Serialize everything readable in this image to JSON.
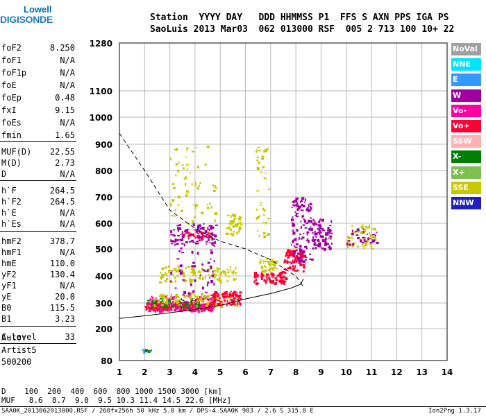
{
  "logo": {
    "line1": "Lowell",
    "line2": "DIGISONDE"
  },
  "header": {
    "columns_line": "Station  YYYY DAY   DDD HHMMSS P1  FFS S AXN PPS IGA PS",
    "values_line": "SaoLuis 2013 Mar03  062 013000 RSF  005 2 713 100 10+ 22"
  },
  "params": [
    {
      "name": "foF2",
      "value": "8.250"
    },
    {
      "name": "foF1",
      "value": "N/A"
    },
    {
      "name": "foF1p",
      "value": "N/A"
    },
    {
      "name": "foE",
      "value": "N/A"
    },
    {
      "name": "foEp",
      "value": "0.48"
    },
    {
      "name": "fxI",
      "value": "9.15"
    },
    {
      "name": "foEs",
      "value": "N/A"
    },
    {
      "name": "fmin",
      "value": "1.65"
    },
    {
      "name": "MUF(D)",
      "value": "22.55"
    },
    {
      "name": "M(D)",
      "value": "2.73"
    },
    {
      "name": "D",
      "value": "N/A"
    },
    {
      "name": "h`F",
      "value": "264.5"
    },
    {
      "name": "h`F2",
      "value": "264.5"
    },
    {
      "name": "h`E",
      "value": "N/A"
    },
    {
      "name": "h`Es",
      "value": "N/A"
    },
    {
      "name": "hmF2",
      "value": "378.7"
    },
    {
      "name": "hmF1",
      "value": "N/A"
    },
    {
      "name": "hmE",
      "value": "110.0"
    },
    {
      "name": "yF2",
      "value": "130.4"
    },
    {
      "name": "yF1",
      "value": "N/A"
    },
    {
      "name": "yE",
      "value": "20.0"
    },
    {
      "name": "B0",
      "value": "115.5"
    },
    {
      "name": "B1",
      "value": "3.23"
    },
    {
      "name": "C-level",
      "value": "33"
    }
  ],
  "autoscale": {
    "line1": "Auto:",
    "line2": "Artist5",
    "line3": "500200"
  },
  "legend": [
    {
      "label": "NoVal",
      "color": "#a0a0a0"
    },
    {
      "label": "NNE",
      "color": "#00e5ff"
    },
    {
      "label": "E",
      "color": "#3399ff"
    },
    {
      "label": "W",
      "color": "#a000a0"
    },
    {
      "label": "Vo-",
      "color": "#ff00a0"
    },
    {
      "label": "Vo+",
      "color": "#ff0033"
    },
    {
      "label": "SSW",
      "color": "#ffb0b0"
    },
    {
      "label": "X-",
      "color": "#008000"
    },
    {
      "label": "X+",
      "color": "#7fbf4f"
    },
    {
      "label": "SSE",
      "color": "#c8c800"
    },
    {
      "label": "NNW",
      "color": "#2020c0"
    }
  ],
  "footer": {
    "d_line": "D    100  200  400  600  800 1000 1500 3000 [km]",
    "muf_line": "MUF   8.6  8.7  9.0  9.5 10.3 11.4 14.5 22.6 [MHz]",
    "file_line": "SAA0K_2013062013000.RSF / 260fx256h 50 kHz 5.0 km / DPS-4 SAA0K 903 / 2.6 S 315.8 E",
    "version": "Ion2Png 1.3.17"
  },
  "chart_data": {
    "type": "scatter",
    "x_ticks": [
      1,
      2,
      3,
      4,
      5,
      6,
      7,
      8,
      9,
      10,
      11,
      12,
      13,
      14
    ],
    "y_ticks": [
      80,
      200,
      300,
      400,
      500,
      600,
      700,
      800,
      900,
      1000,
      1100,
      1280
    ],
    "xlim": [
      1,
      14
    ],
    "ylim": [
      80,
      1280
    ],
    "grid": true,
    "legend_placement": "right",
    "clusters": [
      {
        "color": "#ff0033",
        "x": [
          2.0,
          4.6
        ],
        "y": [
          275,
          305
        ],
        "n": 220
      },
      {
        "color": "#ff00a0",
        "x": [
          2.1,
          4.8
        ],
        "y": [
          270,
          330
        ],
        "n": 150
      },
      {
        "color": "#008000",
        "x": [
          2.0,
          4.2
        ],
        "y": [
          285,
          320
        ],
        "n": 60
      },
      {
        "color": "#c8c800",
        "x": [
          2.3,
          5.7
        ],
        "y": [
          290,
          340
        ],
        "n": 90
      },
      {
        "color": "#ff0033",
        "x": [
          4.6,
          5.8
        ],
        "y": [
          295,
          345
        ],
        "n": 80
      },
      {
        "color": "#ff0033",
        "x": [
          6.3,
          7.6
        ],
        "y": [
          370,
          420
        ],
        "n": 80
      },
      {
        "color": "#ff0033",
        "x": [
          7.5,
          8.3
        ],
        "y": [
          420,
          500
        ],
        "n": 70
      },
      {
        "color": "#a000a0",
        "x": [
          7.8,
          8.6
        ],
        "y": [
          450,
          700
        ],
        "n": 130
      },
      {
        "color": "#a000a0",
        "x": [
          8.6,
          9.4
        ],
        "y": [
          500,
          620
        ],
        "n": 80
      },
      {
        "color": "#a000a0",
        "x": [
          3.0,
          4.8
        ],
        "y": [
          520,
          600
        ],
        "n": 90
      },
      {
        "color": "#ff0033",
        "x": [
          3.5,
          4.6
        ],
        "y": [
          545,
          575
        ],
        "n": 30
      },
      {
        "color": "#c8c800",
        "x": [
          2.5,
          5.7
        ],
        "y": [
          380,
          440
        ],
        "n": 110
      },
      {
        "color": "#c8c800",
        "x": [
          5.2,
          5.8
        ],
        "y": [
          560,
          640
        ],
        "n": 40
      },
      {
        "color": "#c8c800",
        "x": [
          6.5,
          7.2
        ],
        "y": [
          420,
          470
        ],
        "n": 40
      },
      {
        "color": "#c8c800",
        "x": [
          10.0,
          11.2
        ],
        "y": [
          500,
          600
        ],
        "n": 50
      },
      {
        "color": "#a000a0",
        "x": [
          10.0,
          11.2
        ],
        "y": [
          520,
          580
        ],
        "n": 30
      },
      {
        "color": "#c8c800",
        "x": [
          3.0,
          4.8
        ],
        "y": [
          600,
          900
        ],
        "n": 60
      },
      {
        "color": "#a000a0",
        "x": [
          3.0,
          4.8
        ],
        "y": [
          300,
          560
        ],
        "n": 70
      },
      {
        "color": "#c8c800",
        "x": [
          6.4,
          6.9
        ],
        "y": [
          550,
          900
        ],
        "n": 40
      },
      {
        "color": "#3399ff",
        "x": [
          1.9,
          2.3
        ],
        "y": [
          115,
          125
        ],
        "n": 10
      },
      {
        "color": "#008000",
        "x": [
          1.9,
          2.3
        ],
        "y": [
          118,
          122
        ],
        "n": 5
      }
    ],
    "dashed_curve": {
      "x": [
        1.0,
        2.0,
        3.0,
        4.0,
        5.0,
        6.0,
        7.0,
        8.0,
        8.3
      ],
      "y": [
        940,
        800,
        650,
        580,
        530,
        500,
        460,
        400,
        360
      ]
    },
    "solid_curve": {
      "x": [
        1.0,
        2.0,
        3.0,
        4.0,
        5.0,
        6.0,
        7.0,
        7.8,
        8.2,
        8.3
      ],
      "y": [
        240,
        250,
        262,
        275,
        290,
        315,
        335,
        355,
        370,
        390
      ]
    }
  }
}
